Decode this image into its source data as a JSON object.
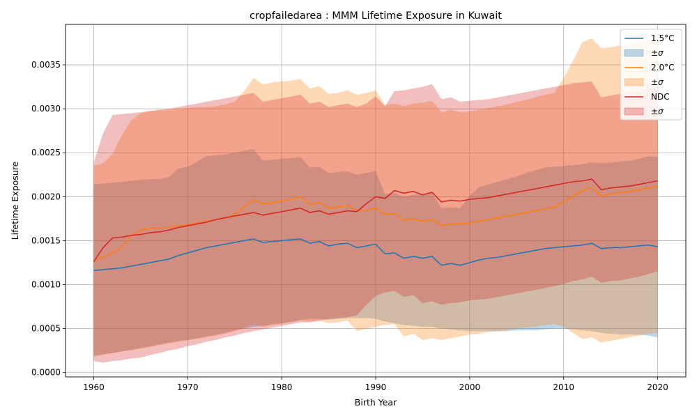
{
  "chart_data": {
    "type": "line",
    "title": "cropfailedarea : MMM Lifetime Exposure in Kuwait",
    "xlabel": "Birth Year",
    "ylabel": "Lifetime Exposure",
    "xlim": [
      1957,
      2023
    ],
    "ylim": [
      -5e-05,
      0.00396
    ],
    "xticks": [
      1960,
      1970,
      1980,
      1990,
      2000,
      2010,
      2020
    ],
    "xtick_labels": [
      "1960",
      "1970",
      "1980",
      "1990",
      "2000",
      "2010",
      "2020"
    ],
    "yticks": [
      0,
      0.0005,
      0.001,
      0.0015,
      0.002,
      0.0025,
      0.003,
      0.0035
    ],
    "ytick_labels": [
      "0.0000",
      "0.0005",
      "0.0010",
      "0.0015",
      "0.0020",
      "0.0025",
      "0.0030",
      "0.0035"
    ],
    "grid": true,
    "legend_position": "top-right",
    "x": [
      1960,
      1961,
      1962,
      1963,
      1964,
      1965,
      1966,
      1967,
      1968,
      1969,
      1970,
      1971,
      1972,
      1973,
      1974,
      1975,
      1976,
      1977,
      1978,
      1979,
      1980,
      1981,
      1982,
      1983,
      1984,
      1985,
      1986,
      1987,
      1988,
      1989,
      1990,
      1991,
      1992,
      1993,
      1994,
      1995,
      1996,
      1997,
      1998,
      1999,
      2000,
      2001,
      2002,
      2003,
      2004,
      2005,
      2006,
      2007,
      2008,
      2009,
      2010,
      2011,
      2012,
      2013,
      2014,
      2015,
      2016,
      2017,
      2018,
      2019,
      2020
    ],
    "series": [
      {
        "name": "1.5°C",
        "band_label": "±σ",
        "color": "#1f77b4",
        "values": [
          0.00116,
          0.00117,
          0.00118,
          0.00119,
          0.00121,
          0.00123,
          0.00125,
          0.00127,
          0.00129,
          0.00133,
          0.00136,
          0.00139,
          0.00142,
          0.00144,
          0.00146,
          0.00148,
          0.0015,
          0.00152,
          0.00148,
          0.00149,
          0.0015,
          0.00151,
          0.00152,
          0.00147,
          0.00149,
          0.00144,
          0.00146,
          0.00147,
          0.00142,
          0.00144,
          0.00146,
          0.00135,
          0.00136,
          0.0013,
          0.00132,
          0.0013,
          0.00132,
          0.00122,
          0.00124,
          0.00122,
          0.00125,
          0.00128,
          0.0013,
          0.00131,
          0.00133,
          0.00135,
          0.00137,
          0.00139,
          0.00141,
          0.00142,
          0.00143,
          0.00144,
          0.00145,
          0.00147,
          0.00141,
          0.00142,
          0.00142,
          0.00143,
          0.00144,
          0.00145,
          0.00143
        ],
        "lower": [
          0.00019,
          0.00021,
          0.00022,
          0.00024,
          0.00026,
          0.00028,
          0.0003,
          0.00032,
          0.00034,
          0.00036,
          0.00037,
          0.00039,
          0.00041,
          0.00043,
          0.00045,
          0.00048,
          0.0005,
          0.00052,
          0.00053,
          0.00055,
          0.00056,
          0.00058,
          0.0006,
          0.00061,
          0.00061,
          0.0006,
          0.00061,
          0.00062,
          0.00062,
          0.00062,
          0.00061,
          0.00058,
          0.00056,
          0.00054,
          0.00053,
          0.00052,
          0.00052,
          0.0005,
          0.00049,
          0.00048,
          0.00047,
          0.00047,
          0.00047,
          0.00047,
          0.00047,
          0.00048,
          0.00048,
          0.00048,
          0.00049,
          0.0005,
          0.0005,
          0.00049,
          0.00048,
          0.00047,
          0.00045,
          0.00044,
          0.00043,
          0.00043,
          0.00043,
          0.00042,
          0.0004
        ],
        "upper": [
          0.00214,
          0.00215,
          0.00216,
          0.00217,
          0.00218,
          0.00219,
          0.0022,
          0.0022,
          0.00222,
          0.00232,
          0.00234,
          0.0024,
          0.00246,
          0.00247,
          0.00248,
          0.0025,
          0.00252,
          0.00254,
          0.00241,
          0.00242,
          0.00243,
          0.00244,
          0.00245,
          0.00233,
          0.00234,
          0.00227,
          0.00228,
          0.00229,
          0.00225,
          0.00227,
          0.00229,
          0.00203,
          0.00204,
          0.002,
          0.00202,
          0.00203,
          0.00204,
          0.00187,
          0.00188,
          0.00187,
          0.00201,
          0.00211,
          0.00214,
          0.00217,
          0.0022,
          0.00223,
          0.00227,
          0.0023,
          0.00233,
          0.00234,
          0.00235,
          0.00236,
          0.00237,
          0.00239,
          0.00238,
          0.00239,
          0.0024,
          0.00241,
          0.00243,
          0.00246,
          0.00245
        ]
      },
      {
        "name": "2.0°C",
        "band_label": "±σ",
        "color": "#ff7f0e",
        "values": [
          0.00128,
          0.00131,
          0.00136,
          0.00143,
          0.00156,
          0.00162,
          0.00164,
          0.00164,
          0.00165,
          0.00167,
          0.00168,
          0.0017,
          0.00172,
          0.00174,
          0.00176,
          0.0018,
          0.00188,
          0.00196,
          0.00192,
          0.00193,
          0.00195,
          0.00197,
          0.002,
          0.00191,
          0.00194,
          0.00187,
          0.00188,
          0.0019,
          0.00184,
          0.00184,
          0.00187,
          0.0018,
          0.00181,
          0.00173,
          0.00175,
          0.00172,
          0.00174,
          0.00167,
          0.00169,
          0.00169,
          0.0017,
          0.00172,
          0.00174,
          0.00176,
          0.00178,
          0.0018,
          0.00182,
          0.00184,
          0.00186,
          0.00188,
          0.00194,
          0.00201,
          0.00207,
          0.0021,
          0.00201,
          0.00203,
          0.00205,
          0.00206,
          0.00208,
          0.0021,
          0.00212
        ],
        "lower": [
          0.00018,
          0.0002,
          0.00022,
          0.00024,
          0.00025,
          0.00027,
          0.00029,
          0.00031,
          0.00033,
          0.00035,
          0.00037,
          0.00038,
          0.0004,
          0.00042,
          0.00044,
          0.00047,
          0.00051,
          0.00055,
          0.00052,
          0.00054,
          0.00055,
          0.00057,
          0.00059,
          0.00058,
          0.00059,
          0.00056,
          0.00057,
          0.00059,
          0.00047,
          0.0005,
          0.00052,
          0.00054,
          0.00055,
          0.00041,
          0.00044,
          0.00037,
          0.00039,
          0.00037,
          0.00039,
          0.00041,
          0.00043,
          0.00044,
          0.00046,
          0.00047,
          0.00048,
          0.0005,
          0.00051,
          0.00052,
          0.00054,
          0.00055,
          0.00052,
          0.00045,
          0.00038,
          0.0004,
          0.00034,
          0.00036,
          0.00038,
          0.0004,
          0.00042,
          0.00044,
          0.00045
        ],
        "upper": [
          0.00235,
          0.00238,
          0.00249,
          0.0027,
          0.00287,
          0.00295,
          0.00298,
          0.00298,
          0.00299,
          0.003,
          0.00301,
          0.00302,
          0.00302,
          0.00303,
          0.00305,
          0.00308,
          0.0032,
          0.00335,
          0.00328,
          0.0033,
          0.00331,
          0.00332,
          0.00334,
          0.00323,
          0.00326,
          0.00317,
          0.00318,
          0.00321,
          0.00316,
          0.00318,
          0.00321,
          0.00304,
          0.00306,
          0.00303,
          0.00306,
          0.00307,
          0.00309,
          0.00296,
          0.00299,
          0.00296,
          0.00297,
          0.00299,
          0.00301,
          0.00303,
          0.00305,
          0.00308,
          0.0031,
          0.00313,
          0.00316,
          0.00318,
          0.00335,
          0.00355,
          0.00376,
          0.0038,
          0.00369,
          0.0037,
          0.00372,
          0.00374,
          0.00376,
          0.00378,
          0.0038
        ]
      },
      {
        "name": "NDC",
        "band_label": "±σ",
        "color": "#d62728",
        "values": [
          0.00126,
          0.00142,
          0.00153,
          0.00154,
          0.00156,
          0.00157,
          0.00159,
          0.0016,
          0.00162,
          0.00165,
          0.00167,
          0.00169,
          0.00171,
          0.00174,
          0.00176,
          0.00178,
          0.0018,
          0.00182,
          0.00179,
          0.00181,
          0.00183,
          0.00185,
          0.00187,
          0.00182,
          0.00184,
          0.0018,
          0.00182,
          0.00184,
          0.00183,
          0.00192,
          0.002,
          0.00198,
          0.00207,
          0.00204,
          0.00206,
          0.00202,
          0.00205,
          0.00194,
          0.00196,
          0.00195,
          0.00197,
          0.00198,
          0.00199,
          0.00201,
          0.00203,
          0.00205,
          0.00207,
          0.00209,
          0.00211,
          0.00213,
          0.00215,
          0.00217,
          0.00218,
          0.0022,
          0.00208,
          0.0021,
          0.00211,
          0.00212,
          0.00214,
          0.00216,
          0.00218
        ],
        "lower": [
          0.00013,
          0.00011,
          0.00013,
          0.00014,
          0.00016,
          0.00017,
          0.0002,
          0.00022,
          0.00025,
          0.00027,
          0.0003,
          0.00032,
          0.00035,
          0.00037,
          0.0004,
          0.00042,
          0.00045,
          0.00047,
          0.00049,
          0.00051,
          0.00053,
          0.00055,
          0.00057,
          0.00057,
          0.00059,
          0.00061,
          0.00062,
          0.00063,
          0.00065,
          0.00077,
          0.00087,
          0.00091,
          0.00093,
          0.00086,
          0.00088,
          0.00079,
          0.00081,
          0.00077,
          0.00079,
          0.0008,
          0.00082,
          0.00083,
          0.00084,
          0.00086,
          0.00088,
          0.0009,
          0.00092,
          0.00094,
          0.00096,
          0.00098,
          0.00101,
          0.00104,
          0.00106,
          0.00109,
          0.00102,
          0.00104,
          0.00105,
          0.00107,
          0.00109,
          0.00112,
          0.00115
        ],
        "upper": [
          0.00239,
          0.00272,
          0.00293,
          0.00294,
          0.00295,
          0.00296,
          0.00297,
          0.00299,
          0.003,
          0.00302,
          0.00304,
          0.00306,
          0.00308,
          0.0031,
          0.00312,
          0.00314,
          0.00316,
          0.00318,
          0.00308,
          0.0031,
          0.00312,
          0.00314,
          0.00316,
          0.00306,
          0.00308,
          0.00302,
          0.00304,
          0.00306,
          0.00302,
          0.00306,
          0.00314,
          0.00303,
          0.0032,
          0.00321,
          0.00323,
          0.00325,
          0.00328,
          0.00311,
          0.00313,
          0.00308,
          0.00309,
          0.0031,
          0.00311,
          0.00313,
          0.00315,
          0.00317,
          0.00319,
          0.00321,
          0.00323,
          0.00325,
          0.00327,
          0.00329,
          0.0033,
          0.00331,
          0.00313,
          0.00315,
          0.00317,
          0.00319,
          0.00321,
          0.00323,
          0.00325
        ]
      }
    ]
  }
}
